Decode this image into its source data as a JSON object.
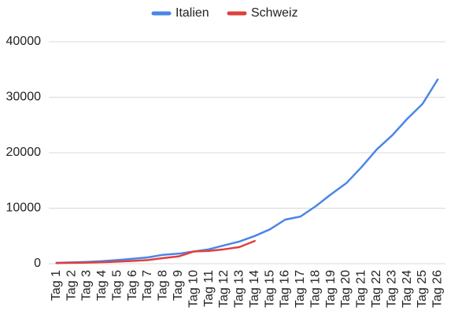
{
  "chart_data": {
    "type": "line",
    "categories": [
      "Tag 1",
      "Tag 2",
      "Tag 3",
      "Tag 4",
      "Tag 5",
      "Tag 6",
      "Tag 7",
      "Tag 8",
      "Tag 9",
      "Tag 10",
      "Tag 11",
      "Tag 12",
      "Tag 13",
      "Tag 14",
      "Tag 15",
      "Tag 16",
      "Tag 17",
      "Tag 18",
      "Tag 19",
      "Tag 20",
      "Tag 21",
      "Tag 22",
      "Tag 23",
      "Tag 24",
      "Tag 25",
      "Tag 26"
    ],
    "series": [
      {
        "name": "Italien",
        "color": "#4a86e8",
        "values": [
          150,
          230,
          320,
          450,
          650,
          890,
          1130,
          1600,
          1800,
          2200,
          2600,
          3300,
          4000,
          5000,
          6200,
          7940,
          8500,
          10350,
          12500,
          14500,
          17400,
          20600,
          23100,
          26100,
          28800,
          33200
        ]
      },
      {
        "name": "Schweiz",
        "color": "#e04040",
        "values": [
          100,
          150,
          200,
          270,
          370,
          500,
          650,
          1000,
          1300,
          2200,
          2300,
          2600,
          3000,
          4100,
          null,
          null,
          null,
          null,
          null,
          null,
          null,
          null,
          null,
          null,
          null,
          null
        ]
      }
    ],
    "ylim": [
      0,
      40000
    ],
    "yticks": [
      0,
      10000,
      20000,
      30000,
      40000
    ],
    "grid": true,
    "legend": "top"
  }
}
